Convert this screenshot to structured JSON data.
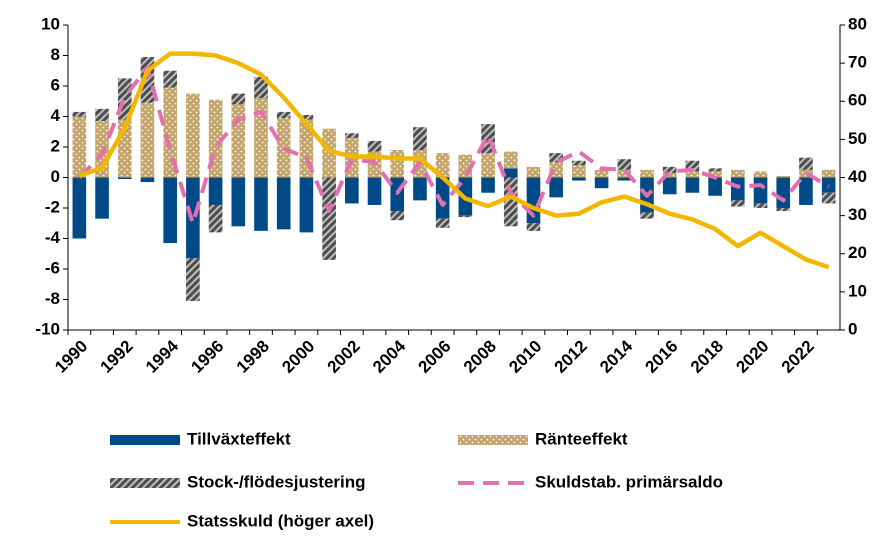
{
  "chart_data": {
    "type": "bar",
    "categories": [
      "1990",
      null,
      "1992",
      null,
      "1994",
      null,
      "1996",
      null,
      "1998",
      null,
      "2000",
      null,
      "2002",
      null,
      "2004",
      null,
      "2006",
      null,
      "2008",
      null,
      "2010",
      null,
      "2012",
      null,
      "2014",
      null,
      "2016",
      null,
      "2018",
      null,
      "2020",
      null,
      "2022",
      null
    ],
    "ylim": [
      -10,
      10
    ],
    "yticks": [
      -10,
      -8,
      -6,
      -4,
      -2,
      0,
      2,
      4,
      6,
      8,
      10
    ],
    "y2lim": [
      0,
      80
    ],
    "y2ticks": [
      0,
      10,
      20,
      30,
      40,
      50,
      60,
      70,
      80
    ],
    "stacked": true,
    "series": [
      {
        "name": "Tillväxteffekt",
        "type": "bar",
        "color": "#004b87",
        "pattern": "solid",
        "values": [
          -4.0,
          -2.7,
          -0.1,
          -0.3,
          -4.3,
          -5.3,
          -1.8,
          -3.2,
          -3.5,
          -3.4,
          -3.6,
          0,
          -1.7,
          -1.8,
          -2.2,
          -1.5,
          -2.7,
          -2.5,
          -1.0,
          0.6,
          -3.0,
          -1.3,
          -0.2,
          -0.7,
          -0.2,
          -2.3,
          -1.1,
          -1.0,
          -1.2,
          -1.5,
          -1.7,
          -2.0,
          -1.8,
          -1.0
        ]
      },
      {
        "name": "Ränteeffekt",
        "type": "bar",
        "color": "#c4a46a",
        "pattern": "dotted",
        "values": [
          4.0,
          3.7,
          3.8,
          4.9,
          5.9,
          5.5,
          5.1,
          4.8,
          5.2,
          3.9,
          3.8,
          3.2,
          2.6,
          1.7,
          1.8,
          1.8,
          1.6,
          1.5,
          1.6,
          1.1,
          0.7,
          1.0,
          0.8,
          0.5,
          0.5,
          0.5,
          0.3,
          0.4,
          0.4,
          0.5,
          0.4,
          0.1,
          0.5,
          0.5
        ]
      },
      {
        "name": "Stock-/flödesjustering",
        "type": "bar",
        "color": "#4d4d4d",
        "pattern": "hatched",
        "values": [
          0.3,
          0.8,
          2.7,
          3.0,
          1.1,
          -2.8,
          -1.8,
          0.7,
          1.4,
          0.4,
          0.3,
          -5.4,
          0.3,
          0.7,
          -0.6,
          1.5,
          -0.6,
          -0.1,
          1.9,
          -3.2,
          -0.5,
          0.6,
          0.3,
          0,
          0.7,
          -0.4,
          0.4,
          0.7,
          0.2,
          -0.4,
          -0.3,
          -0.2,
          0.8,
          -0.7
        ]
      },
      {
        "name": "Skuldstab. primärsaldo",
        "type": "line",
        "color": "#e46fae",
        "style": "dashed",
        "values": [
          0,
          1.5,
          5.3,
          7.2,
          1.8,
          -3.0,
          2.0,
          3.8,
          4.3,
          1.9,
          1.3,
          -2.2,
          1.2,
          1.0,
          -1.0,
          1.0,
          -1.8,
          0.0,
          2.8,
          -1.0,
          -2.5,
          1.0,
          1.7,
          0.6,
          0.5,
          -1.2,
          0.4,
          0.5,
          0.0,
          -0.6,
          -0.5,
          -1.5,
          0.3,
          -0.6
        ]
      },
      {
        "name": "Statsskuld (höger axel)",
        "type": "line",
        "axis": "y2",
        "color": "#f2b700",
        "style": "solid",
        "values": [
          40.5,
          42.5,
          53,
          68,
          72.5,
          72.5,
          72,
          70,
          67,
          61,
          54,
          47,
          45.5,
          45.5,
          45,
          45,
          40,
          34.5,
          32.5,
          35,
          32,
          30,
          30.5,
          33.5,
          35,
          33,
          30.5,
          29,
          26.5,
          22,
          25.5,
          22,
          18.5,
          16.5
        ]
      }
    ]
  }
}
